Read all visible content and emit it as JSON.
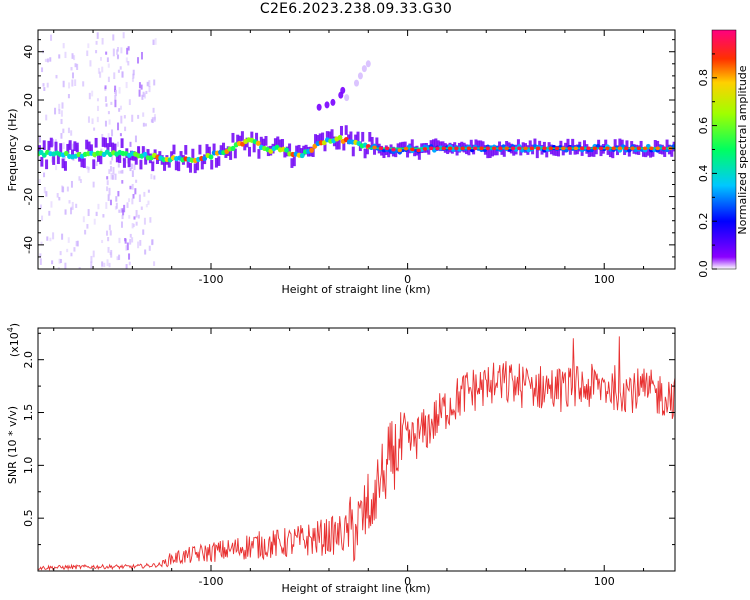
{
  "title": "C2E6.2023.238.09.33.G30",
  "chart_data": [
    {
      "type": "heatmap",
      "xlabel": "Height of straight line (km)",
      "ylabel": "Frequency (Hz)",
      "xlim": [
        -188,
        136
      ],
      "ylim": [
        -50,
        49
      ],
      "xticks": [
        -100,
        0,
        100
      ],
      "yticks": [
        -40,
        -20,
        0,
        20,
        40
      ],
      "colorbar": {
        "label": "Normalized spectral amplitude",
        "range": [
          0,
          1
        ],
        "ticks": [
          "0.0",
          "0.2",
          "0.4",
          "0.6",
          "0.8"
        ],
        "tick_values": [
          0.0,
          0.2,
          0.4,
          0.6,
          0.8
        ]
      },
      "ridge_frequency_hz": {
        "x": [
          -188,
          -170,
          -150,
          -135,
          -125,
          -110,
          -100,
          -90,
          -85,
          -80,
          -75,
          -70,
          -65,
          -60,
          -55,
          -50,
          -45,
          -40,
          -35,
          -30,
          -25,
          -20,
          -15,
          -10,
          -5,
          0,
          5,
          10,
          20,
          40,
          60,
          80,
          100,
          120,
          136
        ],
        "y": [
          -2,
          -3,
          -2,
          -3,
          -4,
          -5,
          -3,
          0,
          2,
          3,
          1,
          -1,
          0,
          -2,
          -3,
          -1,
          2,
          3,
          4,
          3,
          2,
          1,
          0,
          0,
          -1,
          0,
          -1,
          0,
          0,
          0,
          0,
          0,
          0,
          0,
          0
        ]
      }
    },
    {
      "type": "line",
      "xlabel": "Height of straight line (km)",
      "ylabel": "SNR (10 * v/v)",
      "scale_label": "(x10",
      "scale_exponent": "4",
      "scale_suffix": ")",
      "xlim": [
        -188,
        136
      ],
      "ylim": [
        0,
        2.3
      ],
      "xticks": [
        -100,
        0,
        100
      ],
      "yticks": [
        0.5,
        1.0,
        1.5,
        2.0
      ],
      "ytick_labels": [
        "0.5",
        "1.0",
        "1.5",
        "2.0"
      ],
      "series": [
        {
          "name": "SNR",
          "color": "#e83030",
          "trend": {
            "x": [
              -188,
              -160,
              -140,
              -125,
              -120,
              -110,
              -100,
              -90,
              -80,
              -70,
              -60,
              -50,
              -40,
              -32,
              -28,
              -24,
              -20,
              -16,
              -12,
              -8,
              -4,
              0,
              10,
              20,
              30,
              40,
              50,
              60,
              80,
              100,
              120,
              136
            ],
            "y": [
              0.03,
              0.04,
              0.04,
              0.06,
              0.12,
              0.15,
              0.18,
              0.2,
              0.24,
              0.25,
              0.27,
              0.3,
              0.33,
              0.35,
              0.38,
              0.45,
              0.6,
              0.8,
              0.95,
              1.1,
              1.15,
              1.2,
              1.35,
              1.55,
              1.7,
              1.75,
              1.78,
              1.75,
              1.72,
              1.75,
              1.7,
              1.65
            ]
          }
        }
      ]
    }
  ]
}
